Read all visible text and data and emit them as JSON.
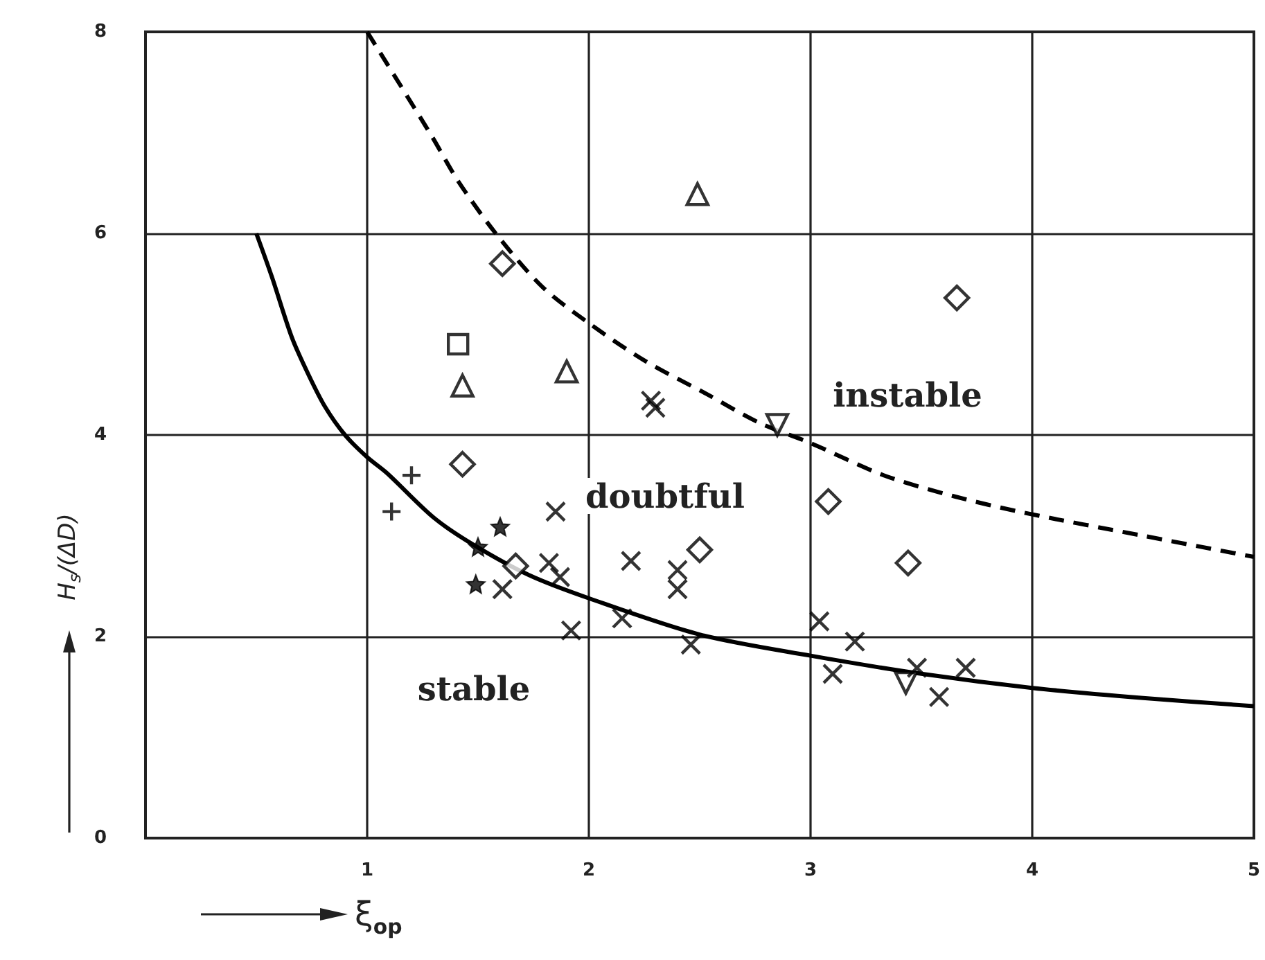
{
  "chart_data": {
    "type": "scatter",
    "xlabel": "ξ$_{op}$",
    "ylabel": "H$_{s}$/(ΔD)",
    "xlim": [
      0,
      5
    ],
    "ylim": [
      0,
      8
    ],
    "xticks": [
      1,
      2,
      3,
      4,
      5
    ],
    "yticks": [
      0,
      2,
      4,
      6,
      8
    ],
    "grid": true,
    "annotations": [
      "instable",
      "doubtful",
      "stable"
    ],
    "series": [
      {
        "color": "#000000",
        "marker": "diamond",
        "x": [
          1.43,
          1.67,
          2.5,
          3.08,
          3.44,
          3.66
        ],
        "values": [
          3.71,
          2.7,
          2.86,
          3.34,
          2.73,
          5.36
        ]
      },
      {
        "color": "#000000",
        "marker": "diamond",
        "x": [
          1.61
        ],
        "values": [
          5.7
        ]
      },
      {
        "color": "#000000",
        "marker": "square",
        "x": [
          1.41
        ],
        "values": [
          4.9
        ]
      },
      {
        "color": "#000000",
        "marker": "triangle",
        "x": [
          1.43,
          1.9,
          2.49
        ],
        "values": [
          4.49,
          4.63,
          6.39
        ]
      },
      {
        "color": "#000000",
        "marker": "triangle_down",
        "x": [
          2.85,
          3.43
        ],
        "values": [
          4.1,
          1.54
        ]
      },
      {
        "color": "#000000",
        "marker": "cross",
        "x": [
          1.85,
          1.82,
          1.87,
          1.61,
          1.92,
          2.19,
          2.4,
          2.4,
          2.15,
          2.46,
          2.28,
          2.3,
          3.04,
          3.2,
          3.1,
          3.48,
          3.58,
          3.7
        ],
        "values": [
          3.24,
          2.73,
          2.59,
          2.47,
          2.06,
          2.75,
          2.66,
          2.47,
          2.18,
          1.92,
          4.34,
          4.27,
          2.15,
          1.95,
          1.63,
          1.69,
          1.4,
          1.69
        ]
      },
      {
        "color": "#000000",
        "marker": "plus",
        "x": [
          1.2
        ],
        "values": [
          3.6
        ]
      },
      {
        "color": "#000000",
        "marker": "plus",
        "x": [
          1.11
        ],
        "values": [
          3.24
        ]
      },
      {
        "color": "#000000",
        "marker": "star",
        "x": [
          1.6,
          1.5,
          1.49
        ],
        "values": [
          3.09,
          2.89,
          2.52
        ]
      },
      {
        "type": "line",
        "color": "#000000",
        "line_style": "solid",
        "marker": "none",
        "x": [
          0.5,
          0.57,
          0.66,
          0.735,
          0.81,
          0.9,
          1.0,
          1.09,
          1.3,
          1.48,
          1.73,
          2.0,
          2.5,
          3.0,
          3.5,
          4.0,
          4.5,
          5.0
        ],
        "values": [
          6.0,
          5.57,
          4.97,
          4.6,
          4.28,
          4.0,
          3.78,
          3.62,
          3.18,
          2.91,
          2.61,
          2.38,
          2.02,
          1.81,
          1.63,
          1.49,
          1.39,
          1.31
        ]
      },
      {
        "type": "line",
        "color": "#000000",
        "line_style": "dashed",
        "marker": "none",
        "x": [
          1.0,
          1.29,
          1.41,
          1.58,
          1.79,
          2.0,
          2.25,
          2.52,
          2.77,
          3.0,
          3.33,
          3.65,
          3.96,
          4.5,
          5.0
        ],
        "values": [
          8.0,
          6.97,
          6.52,
          6.0,
          5.47,
          5.11,
          4.74,
          4.42,
          4.12,
          3.92,
          3.6,
          3.39,
          3.23,
          3.0,
          2.79
        ]
      }
    ]
  }
}
